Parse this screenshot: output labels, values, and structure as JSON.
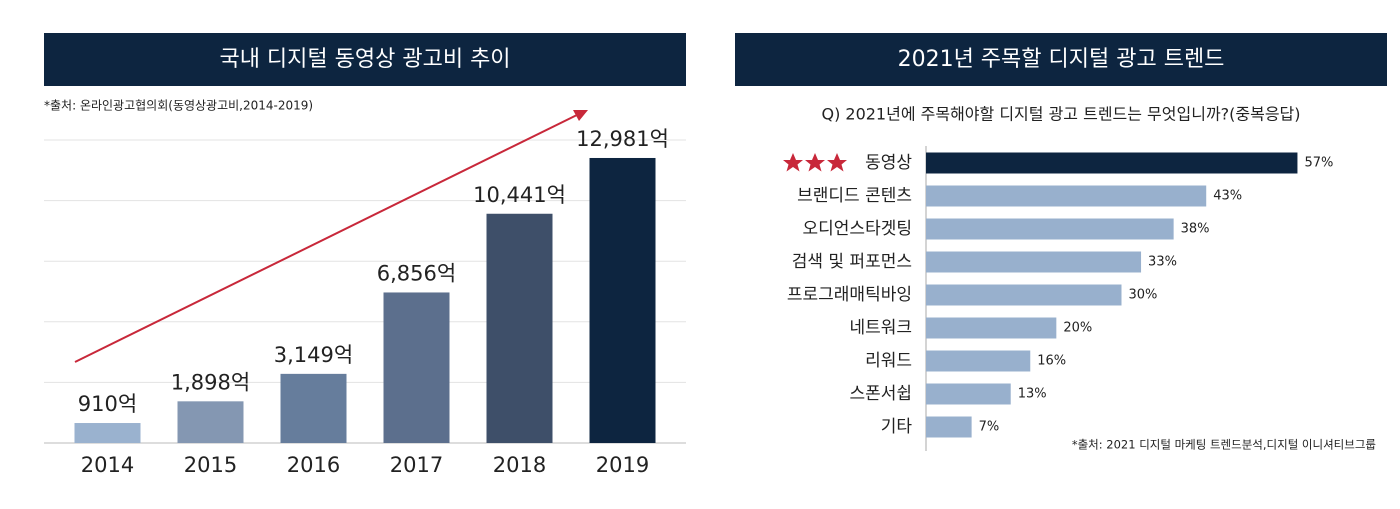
{
  "chart_data": [
    {
      "type": "bar",
      "title": "국내 디지털 동영상 광고비 추이",
      "source": "*출처: 온라인광고협의회(동영상광고비,2014-2019)",
      "categories": [
        "2014",
        "2015",
        "2016",
        "2017",
        "2018",
        "2019"
      ],
      "values": [
        910,
        1898,
        3149,
        6856,
        10441,
        12981
      ],
      "value_labels": [
        "910억",
        "1,898억",
        "3,149억",
        "6,856억",
        "10,441억",
        "12,981억"
      ],
      "colors": [
        "#9ab2cf",
        "#8497b2",
        "#667d9c",
        "#5c6f8d",
        "#3e4f69",
        "#0d2540"
      ],
      "ylim": [
        0,
        13800
      ],
      "grid": true
    },
    {
      "type": "hbar",
      "title": "2021년 주목할 디지털 광고 트렌드",
      "subtitle": "Q) 2021년에 주목해야할 디지털 광고 트렌드는 무엇입니까?(중복응답)",
      "source": "*출처: 2021 디지털 마케팅 트렌드분석,디지털 이니셔티브그룹",
      "categories": [
        "동영상",
        "브랜디드 콘텐츠",
        "오디언스타겟팅",
        "검색 및 퍼포먼스",
        "프로그래매틱바잉",
        "네트워크",
        "리워드",
        "스폰서쉽",
        "기타"
      ],
      "values": [
        57,
        43,
        38,
        33,
        30,
        20,
        16,
        13,
        7
      ],
      "value_labels": [
        "57%",
        "43%",
        "38%",
        "33%",
        "30%",
        "20%",
        "16%",
        "13%",
        "7%"
      ],
      "colors": [
        "#0d2540",
        "#98b0cd",
        "#98b0cd",
        "#98b0cd",
        "#98b0cd",
        "#98b0cd",
        "#98b0cd",
        "#98b0cd",
        "#98b0cd"
      ],
      "xlim": [
        0,
        60
      ]
    }
  ]
}
